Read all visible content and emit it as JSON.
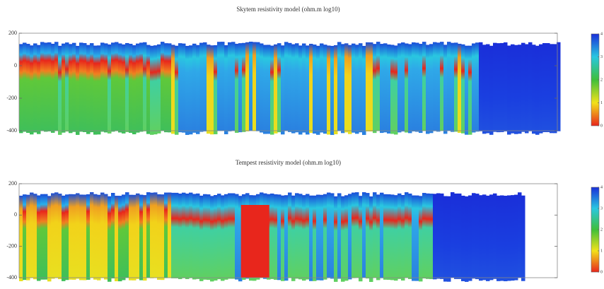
{
  "chart_data": [
    {
      "type": "heatmap",
      "title": "Skytem resistivity model (ohm.m log10)",
      "ylim": [
        -400,
        200
      ],
      "yticks": [
        200,
        0,
        -200,
        -400
      ],
      "colorbar_lim": [
        0,
        4
      ],
      "colorbar_ticks": [
        0,
        1,
        2,
        3,
        4
      ]
    },
    {
      "type": "heatmap",
      "title": "Tempest resistivity model (ohm.m log10)",
      "ylim": [
        -400,
        200
      ],
      "yticks": [
        200,
        0,
        -200,
        -400
      ],
      "colorbar_lim": [
        0,
        4
      ],
      "colorbar_ticks": [
        0,
        1,
        2,
        3,
        4
      ]
    }
  ]
}
